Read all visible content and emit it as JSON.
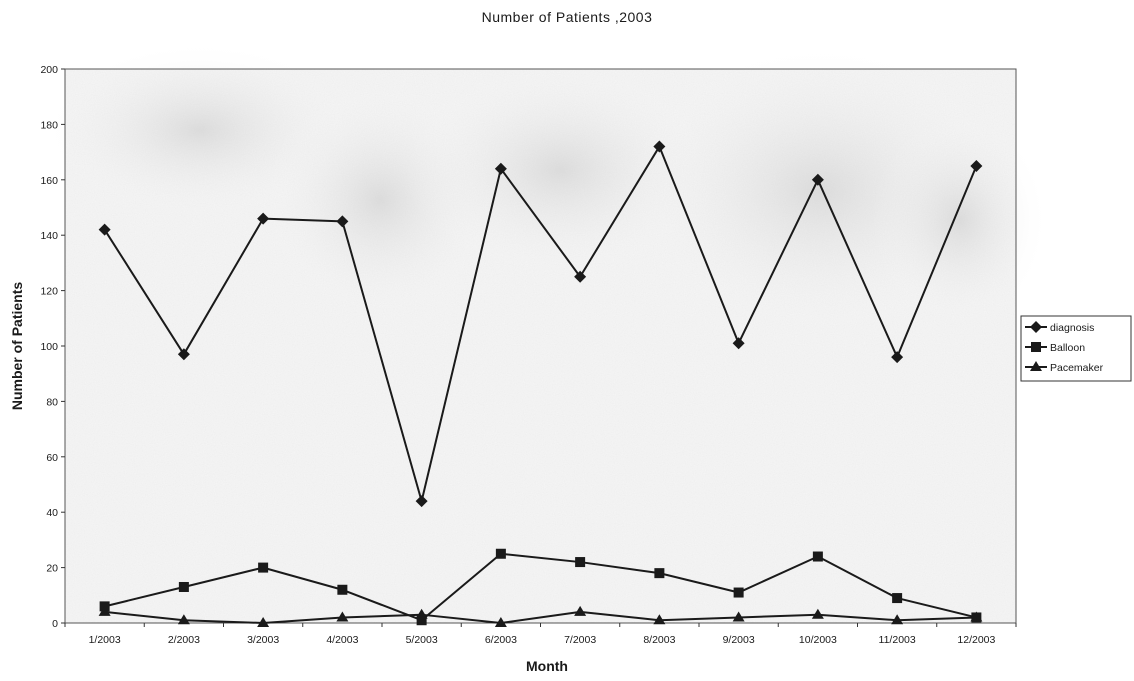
{
  "chart_data": {
    "type": "line",
    "title": "Number of Patients ,2003",
    "xlabel": "Month",
    "ylabel": "Number of Patients",
    "categories": [
      "1/2003",
      "2/2003",
      "3/2003",
      "4/2003",
      "5/2003",
      "6/2003",
      "7/2003",
      "8/2003",
      "9/2003",
      "10/2003",
      "11/2003",
      "12/2003"
    ],
    "ylim": [
      0,
      200
    ],
    "yticks": [
      0,
      20,
      40,
      60,
      80,
      100,
      120,
      140,
      160,
      180,
      200
    ],
    "grid": false,
    "legend_position": "right",
    "series": [
      {
        "name": "diagnosis",
        "marker": "diamond",
        "color": "#1a1a1a",
        "values": [
          142,
          97,
          146,
          145,
          44,
          164,
          125,
          172,
          101,
          160,
          96,
          165
        ]
      },
      {
        "name": "Balloon",
        "marker": "square",
        "color": "#1a1a1a",
        "values": [
          6,
          13,
          20,
          12,
          1,
          25,
          22,
          18,
          11,
          24,
          9,
          2
        ]
      },
      {
        "name": "Pacemaker",
        "marker": "triangle",
        "color": "#1a1a1a",
        "values": [
          4,
          1,
          0,
          2,
          3,
          0,
          4,
          1,
          2,
          3,
          1,
          2
        ]
      }
    ]
  }
}
